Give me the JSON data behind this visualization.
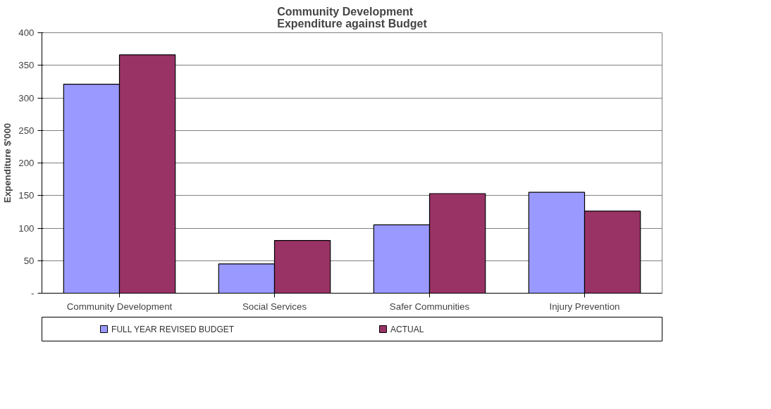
{
  "chart_data": {
    "type": "bar",
    "title": "Community Development\nExpenditure against Budget",
    "ylabel": "Expenditure $'000",
    "categories": [
      "Community Development",
      "Social Services",
      "Safer Communities",
      "Injury Prevention"
    ],
    "series": [
      {
        "name": "FULL YEAR REVISED BUDGET",
        "color": "#9999ff",
        "values": [
          321,
          45,
          105,
          155
        ]
      },
      {
        "name": "ACTUAL",
        "color": "#993366",
        "values": [
          366,
          81,
          153,
          126
        ]
      }
    ],
    "ylim": [
      0,
      400
    ],
    "yticks": [
      {
        "value": 0,
        "label": "-"
      },
      50,
      100,
      150,
      200,
      250,
      300,
      350,
      400
    ],
    "grid": "y",
    "legend": "bottom"
  }
}
